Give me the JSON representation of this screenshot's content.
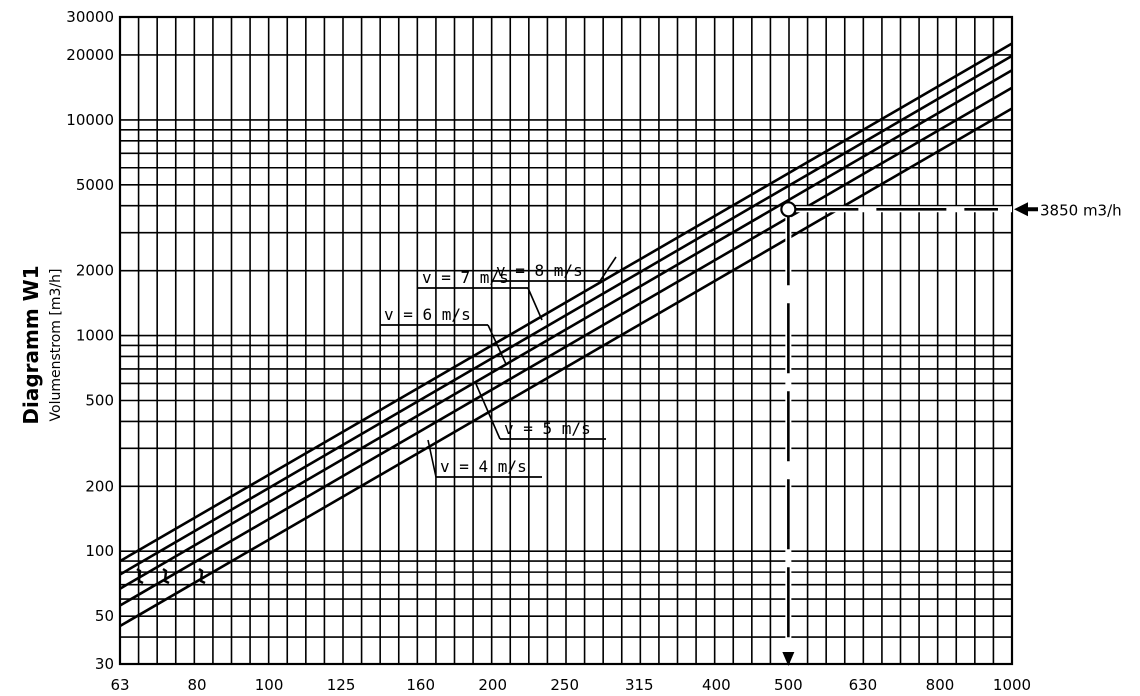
{
  "chart_data": {
    "type": "line",
    "title": "Diagramm W1",
    "ylabel": "Volumenstrom [m3/h]",
    "xlabel": "",
    "x_scale": "log",
    "y_scale": "log",
    "xlim": [
      63,
      1000
    ],
    "ylim": [
      30,
      30000
    ],
    "grid": true,
    "x_ticks": [
      "63",
      "80",
      "100",
      "125",
      "160",
      "200",
      "250",
      "315",
      "400",
      "500",
      "630",
      "800",
      "1000"
    ],
    "y_ticks": [
      "30",
      "50",
      "100",
      "200",
      "500",
      "1000",
      "2000",
      "5000",
      "10000",
      "20000",
      "30000"
    ],
    "series": [
      {
        "name": "v = 4 m/s",
        "x": [
          63,
          1000
        ],
        "y": [
          45,
          11300
        ]
      },
      {
        "name": "v = 5 m/s",
        "x": [
          63,
          1000
        ],
        "y": [
          56,
          14100
        ]
      },
      {
        "name": "v = 6 m/s",
        "x": [
          63,
          1000
        ],
        "y": [
          67,
          17000
        ]
      },
      {
        "name": "v = 7 m/s",
        "x": [
          63,
          1000
        ],
        "y": [
          78,
          19800
        ]
      },
      {
        "name": "v = 8 m/s",
        "x": [
          63,
          1000
        ],
        "y": [
          90,
          22600
        ]
      }
    ],
    "annotations": [
      {
        "text": "3850 m3/h",
        "y": 3850
      },
      {
        "text": "",
        "x": 500,
        "y": 3850
      }
    ]
  }
}
